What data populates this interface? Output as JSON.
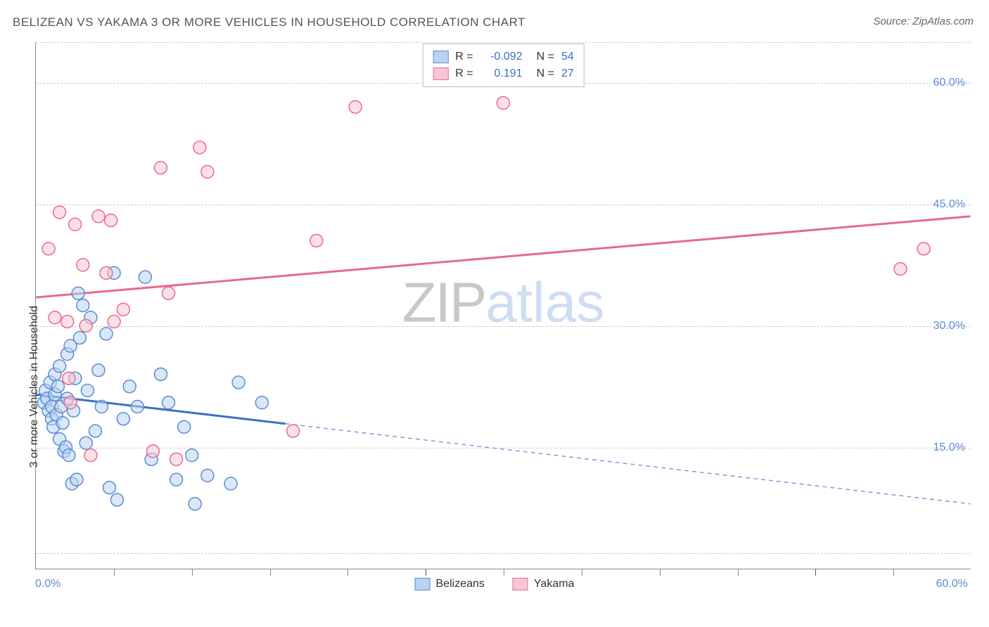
{
  "title": "BELIZEAN VS YAKAMA 3 OR MORE VEHICLES IN HOUSEHOLD CORRELATION CHART",
  "source_label": "Source: ZipAtlas.com",
  "y_axis_label": "3 or more Vehicles in Household",
  "watermark": {
    "part1": "ZIP",
    "part2": "atlas"
  },
  "chart": {
    "type": "scatter",
    "xlim": [
      0,
      60
    ],
    "ylim": [
      0,
      65
    ],
    "x_start_label": "0.0%",
    "x_end_label": "60.0%",
    "y_ticks": [
      {
        "value": 15.0,
        "label": "15.0%"
      },
      {
        "value": 30.0,
        "label": "30.0%"
      },
      {
        "value": 45.0,
        "label": "45.0%"
      },
      {
        "value": 60.0,
        "label": "60.0%"
      }
    ],
    "x_ticks_minor": [
      5,
      10,
      15,
      20,
      30,
      35,
      40,
      45,
      55
    ],
    "x_ticks_major": [
      25,
      50
    ],
    "gridlines_h": [
      2,
      15,
      30,
      45,
      60,
      65
    ],
    "background_color": "#ffffff",
    "grid_color": "#cccccc",
    "axis_color": "#888888",
    "marker_radius": 9,
    "marker_stroke_width": 1.5,
    "series": [
      {
        "name": "Belizeans",
        "fill": "#b9d3f0",
        "stroke": "#5b8bd4",
        "fill_opacity": 0.55,
        "r_label": "R =",
        "r_value": "-0.092",
        "n_label": "N =",
        "n_value": "54",
        "regression": {
          "y_at_x0": 21.5,
          "y_at_x60": 8.0,
          "solid_until_x": 16.0,
          "solid_color": "#3b6fc4",
          "solid_width": 3,
          "dash_color": "#7a9fd6",
          "dash_width": 1.5,
          "dash_pattern": "6,5"
        },
        "points": [
          [
            0.5,
            20.5
          ],
          [
            0.6,
            22.0
          ],
          [
            0.7,
            21.0
          ],
          [
            0.8,
            19.5
          ],
          [
            0.9,
            23.0
          ],
          [
            1.0,
            18.5
          ],
          [
            1.0,
            20.0
          ],
          [
            1.1,
            17.5
          ],
          [
            1.2,
            21.5
          ],
          [
            1.2,
            24.0
          ],
          [
            1.3,
            19.0
          ],
          [
            1.4,
            22.5
          ],
          [
            1.5,
            16.0
          ],
          [
            1.5,
            25.0
          ],
          [
            1.6,
            20.0
          ],
          [
            1.7,
            18.0
          ],
          [
            1.8,
            14.5
          ],
          [
            1.9,
            15.0
          ],
          [
            2.0,
            26.5
          ],
          [
            2.0,
            21.0
          ],
          [
            2.1,
            14.0
          ],
          [
            2.2,
            27.5
          ],
          [
            2.3,
            10.5
          ],
          [
            2.4,
            19.5
          ],
          [
            2.5,
            23.5
          ],
          [
            2.6,
            11.0
          ],
          [
            2.7,
            34.0
          ],
          [
            2.8,
            28.5
          ],
          [
            3.0,
            32.5
          ],
          [
            3.2,
            15.5
          ],
          [
            3.3,
            22.0
          ],
          [
            3.5,
            31.0
          ],
          [
            3.8,
            17.0
          ],
          [
            4.0,
            24.5
          ],
          [
            4.2,
            20.0
          ],
          [
            4.5,
            29.0
          ],
          [
            4.7,
            10.0
          ],
          [
            5.0,
            36.5
          ],
          [
            5.2,
            8.5
          ],
          [
            5.6,
            18.5
          ],
          [
            6.0,
            22.5
          ],
          [
            6.5,
            20.0
          ],
          [
            7.0,
            36.0
          ],
          [
            7.4,
            13.5
          ],
          [
            8.0,
            24.0
          ],
          [
            8.5,
            20.5
          ],
          [
            9.0,
            11.0
          ],
          [
            9.5,
            17.5
          ],
          [
            10.0,
            14.0
          ],
          [
            10.2,
            8.0
          ],
          [
            11.0,
            11.5
          ],
          [
            12.5,
            10.5
          ],
          [
            13.0,
            23.0
          ],
          [
            14.5,
            20.5
          ]
        ]
      },
      {
        "name": "Yakama",
        "fill": "#f7c6d4",
        "stroke": "#e86a91",
        "fill_opacity": 0.55,
        "r_label": "R =",
        "r_value": "0.191",
        "n_label": "N =",
        "n_value": "27",
        "regression": {
          "y_at_x0": 33.5,
          "y_at_x60": 43.5,
          "solid_until_x": 60.0,
          "solid_color": "#e86a91",
          "solid_width": 3,
          "dash_color": "#e86a91",
          "dash_width": 1.5,
          "dash_pattern": "6,5"
        },
        "points": [
          [
            0.8,
            39.5
          ],
          [
            1.2,
            31.0
          ],
          [
            1.5,
            44.0
          ],
          [
            2.0,
            30.5
          ],
          [
            2.1,
            23.5
          ],
          [
            2.2,
            20.5
          ],
          [
            2.5,
            42.5
          ],
          [
            3.0,
            37.5
          ],
          [
            3.2,
            30.0
          ],
          [
            3.5,
            14.0
          ],
          [
            4.0,
            43.5
          ],
          [
            4.5,
            36.5
          ],
          [
            4.8,
            43.0
          ],
          [
            5.0,
            30.5
          ],
          [
            5.6,
            32.0
          ],
          [
            7.5,
            14.5
          ],
          [
            8.0,
            49.5
          ],
          [
            8.5,
            34.0
          ],
          [
            9.0,
            13.5
          ],
          [
            10.5,
            52.0
          ],
          [
            11.0,
            49.0
          ],
          [
            16.5,
            17.0
          ],
          [
            18.0,
            40.5
          ],
          [
            20.5,
            57.0
          ],
          [
            30.0,
            57.5
          ],
          [
            55.5,
            37.0
          ],
          [
            57.0,
            39.5
          ]
        ]
      }
    ]
  },
  "bottom_legend": [
    {
      "label": "Belizeans",
      "fill": "#b9d3f0",
      "stroke": "#5b8bd4"
    },
    {
      "label": "Yakama",
      "fill": "#f7c6d4",
      "stroke": "#e86a91"
    }
  ]
}
